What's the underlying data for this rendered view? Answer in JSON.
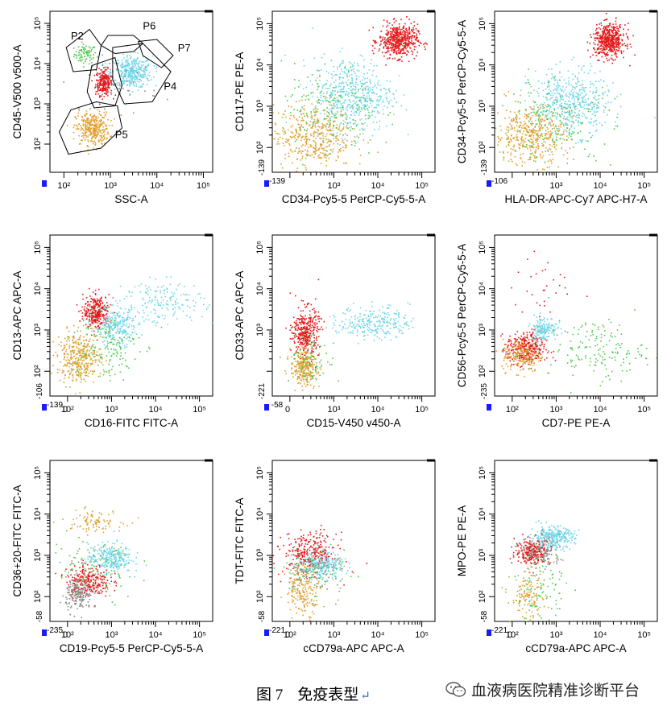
{
  "figure": {
    "caption_number": "图 7",
    "caption_text": "免疫表型",
    "watermark": "血液病医院精准诊断平台",
    "colors": {
      "red": "#e41a1c",
      "cyan": "#6fd6e8",
      "orange": "#e0a030",
      "green": "#4cc94c",
      "gray": "#8a8a8a",
      "purple": "#9b59b6",
      "blue_marker": "#1a1aff"
    }
  },
  "chart_data": [
    {
      "type": "scatter",
      "title": "",
      "xlabel": "SSC-A",
      "ylabel": "CD45-V500 v500-A",
      "x_ticks": [
        "10²",
        "10³",
        "10⁴",
        "10⁵"
      ],
      "y_ticks": [
        "10²",
        "10³",
        "10⁴",
        "10⁵"
      ],
      "x_start_label": "",
      "y_start_label": "",
      "xlim": [
        1.7,
        5.2
      ],
      "ylim": [
        1.3,
        5.3
      ],
      "grid": false,
      "gates": [
        {
          "name": "P2",
          "label": "P2",
          "polygon": [
            [
              2.05,
              4.4
            ],
            [
              2.55,
              4.85
            ],
            [
              2.8,
              4.45
            ],
            [
              2.7,
              3.85
            ],
            [
              2.2,
              3.8
            ]
          ]
        },
        {
          "name": "P6",
          "label": "P6",
          "polygon": [
            [
              2.8,
              4.45
            ],
            [
              2.95,
              4.7
            ],
            [
              3.5,
              4.7
            ],
            [
              3.7,
              4.5
            ],
            [
              3.5,
              4.3
            ],
            [
              3.1,
              4.25
            ]
          ]
        },
        {
          "name": "P7",
          "label": "P7",
          "polygon": [
            [
              3.6,
              4.55
            ],
            [
              4.0,
              4.6
            ],
            [
              4.35,
              4.2
            ],
            [
              4.1,
              3.9
            ],
            [
              3.7,
              4.2
            ]
          ]
        },
        {
          "name": "P4",
          "label": "P4",
          "polygon": [
            [
              3.05,
              4.4
            ],
            [
              3.7,
              4.5
            ],
            [
              4.3,
              3.8
            ],
            [
              3.9,
              3.05
            ],
            [
              3.3,
              3.0
            ],
            [
              3.05,
              3.6
            ]
          ]
        },
        {
          "name": "P3",
          "label": "",
          "polygon": [
            [
              2.6,
              3.95
            ],
            [
              3.1,
              4.15
            ],
            [
              3.25,
              3.45
            ],
            [
              3.1,
              2.95
            ],
            [
              2.65,
              2.9
            ],
            [
              2.5,
              3.3
            ]
          ]
        },
        {
          "name": "P5",
          "label": "P5",
          "polygon": [
            [
              1.9,
              2.3
            ],
            [
              2.15,
              2.85
            ],
            [
              2.7,
              3.05
            ],
            [
              3.15,
              2.95
            ],
            [
              3.25,
              2.4
            ],
            [
              2.8,
              1.9
            ],
            [
              2.1,
              1.75
            ]
          ]
        }
      ],
      "gate_label_positions": {
        "P2": [
          2.15,
          4.6
        ],
        "P6": [
          3.7,
          4.85
        ],
        "P7": [
          4.45,
          4.3
        ],
        "P4": [
          4.15,
          3.35
        ],
        "P5": [
          3.1,
          2.15
        ]
      },
      "populations": [
        {
          "color": "green",
          "n": 80,
          "cx": 2.45,
          "cy": 4.25,
          "sx": 0.12,
          "sy": 0.12
        },
        {
          "color": "red",
          "n": 260,
          "cx": 2.85,
          "cy": 3.55,
          "sx": 0.09,
          "sy": 0.16
        },
        {
          "color": "cyan",
          "n": 380,
          "cx": 3.45,
          "cy": 3.8,
          "sx": 0.22,
          "sy": 0.2
        },
        {
          "color": "orange",
          "n": 340,
          "cx": 2.6,
          "cy": 2.4,
          "sx": 0.18,
          "sy": 0.2
        },
        {
          "color": "gray",
          "n": 40,
          "cx": 3.3,
          "cy": 3.5,
          "sx": 0.35,
          "sy": 0.35
        }
      ]
    },
    {
      "type": "scatter",
      "title": "",
      "xlabel": "CD34-Pcy5-5 PerCP-Cy5-5-A",
      "ylabel": "CD117-PE PE-A",
      "x_ticks": [
        "10³",
        "10⁴",
        "10⁵"
      ],
      "y_ticks": [
        "10²",
        "10³",
        "10⁴",
        "10⁵"
      ],
      "x_start_label": "-139",
      "y_start_label": "-139",
      "xlim": [
        1.6,
        5.3
      ],
      "ylim": [
        1.4,
        5.3
      ],
      "grid": false,
      "gates": [],
      "populations": [
        {
          "color": "red",
          "n": 520,
          "cx": 4.45,
          "cy": 4.6,
          "sx": 0.22,
          "sy": 0.2
        },
        {
          "color": "cyan",
          "n": 520,
          "cx": 3.4,
          "cy": 3.3,
          "sx": 0.45,
          "sy": 0.45
        },
        {
          "color": "orange",
          "n": 420,
          "cx": 2.5,
          "cy": 2.3,
          "sx": 0.45,
          "sy": 0.4
        },
        {
          "color": "green",
          "n": 180,
          "cx": 2.9,
          "cy": 2.9,
          "sx": 0.55,
          "sy": 0.55
        }
      ]
    },
    {
      "type": "scatter",
      "title": "",
      "xlabel": "HLA-DR-APC-Cy7 APC-H7-A",
      "ylabel": "CD34-Pcy5-5 PerCP-Cy5-5-A",
      "x_ticks": [
        "10³",
        "10⁴",
        "10⁵"
      ],
      "y_ticks": [
        "10²",
        "10³",
        "10⁴",
        "10⁵"
      ],
      "x_start_label": "-106",
      "y_start_label": "-139",
      "xlim": [
        1.6,
        5.3
      ],
      "ylim": [
        1.4,
        5.3
      ],
      "grid": false,
      "gates": [],
      "populations": [
        {
          "color": "red",
          "n": 520,
          "cx": 4.2,
          "cy": 4.6,
          "sx": 0.18,
          "sy": 0.2
        },
        {
          "color": "cyan",
          "n": 480,
          "cx": 3.3,
          "cy": 3.1,
          "sx": 0.45,
          "sy": 0.4
        },
        {
          "color": "orange",
          "n": 420,
          "cx": 2.4,
          "cy": 2.3,
          "sx": 0.4,
          "sy": 0.35
        },
        {
          "color": "green",
          "n": 180,
          "cx": 3.0,
          "cy": 2.6,
          "sx": 0.65,
          "sy": 0.5
        }
      ]
    },
    {
      "type": "scatter",
      "title": "",
      "xlabel": "CD16-FITC FITC-A",
      "ylabel": "CD13-APC APC-A",
      "x_ticks": [
        "0",
        "10²",
        "10³",
        "10⁴",
        "10⁵"
      ],
      "y_ticks": [
        "10²",
        "10³",
        "10⁴",
        "10⁵"
      ],
      "x_start_label": "-139",
      "y_start_label": "-106",
      "xlim": [
        1.6,
        5.3
      ],
      "ylim": [
        1.4,
        5.3
      ],
      "grid": false,
      "gates": [],
      "populations": [
        {
          "color": "red",
          "n": 300,
          "cx": 2.65,
          "cy": 3.45,
          "sx": 0.15,
          "sy": 0.2
        },
        {
          "color": "cyan",
          "n": 260,
          "cx": 3.1,
          "cy": 3.1,
          "sx": 0.25,
          "sy": 0.25
        },
        {
          "color": "cyan",
          "n": 160,
          "cx": 4.2,
          "cy": 3.7,
          "sx": 0.45,
          "sy": 0.25
        },
        {
          "color": "orange",
          "n": 360,
          "cx": 2.25,
          "cy": 2.35,
          "sx": 0.25,
          "sy": 0.3
        },
        {
          "color": "green",
          "n": 140,
          "cx": 2.8,
          "cy": 2.6,
          "sx": 0.4,
          "sy": 0.4
        }
      ]
    },
    {
      "type": "scatter",
      "title": "",
      "xlabel": "CD15-V450 v450-A",
      "ylabel": "CD33-APC APC-A",
      "x_ticks": [
        "0",
        "10³",
        "10⁴",
        "10⁵"
      ],
      "y_ticks": [
        "10³",
        "10⁴",
        "10⁵"
      ],
      "x_start_label": "-58",
      "y_start_label": "-221",
      "xlim": [
        1.6,
        5.3
      ],
      "ylim": [
        1.4,
        5.3
      ],
      "grid": false,
      "gates": [],
      "populations": [
        {
          "color": "red",
          "n": 360,
          "cx": 2.35,
          "cy": 2.95,
          "sx": 0.15,
          "sy": 0.3
        },
        {
          "color": "orange",
          "n": 260,
          "cx": 2.3,
          "cy": 2.1,
          "sx": 0.15,
          "sy": 0.2
        },
        {
          "color": "cyan",
          "n": 260,
          "cx": 3.9,
          "cy": 3.2,
          "sx": 0.4,
          "sy": 0.2
        },
        {
          "color": "green",
          "n": 80,
          "cx": 2.5,
          "cy": 2.3,
          "sx": 0.25,
          "sy": 0.3
        }
      ]
    },
    {
      "type": "scatter",
      "title": "",
      "xlabel": "CD7-PE PE-A",
      "ylabel": "CD56-Pcy5-5 PerCP-Cy5-5-A",
      "x_ticks": [
        "10²",
        "10³",
        "10⁴",
        "10⁵"
      ],
      "y_ticks": [
        "10²",
        "10³",
        "10⁴",
        "10⁵"
      ],
      "x_start_label": "",
      "y_start_label": "-235",
      "xlim": [
        1.6,
        5.3
      ],
      "ylim": [
        1.4,
        5.3
      ],
      "grid": false,
      "gates": [],
      "populations": [
        {
          "color": "red",
          "n": 340,
          "cx": 2.3,
          "cy": 2.55,
          "sx": 0.22,
          "sy": 0.2
        },
        {
          "color": "orange",
          "n": 180,
          "cx": 2.2,
          "cy": 2.4,
          "sx": 0.22,
          "sy": 0.2
        },
        {
          "color": "cyan",
          "n": 160,
          "cx": 2.7,
          "cy": 3.05,
          "sx": 0.15,
          "sy": 0.15
        },
        {
          "color": "green",
          "n": 160,
          "cx": 3.9,
          "cy": 2.55,
          "sx": 0.55,
          "sy": 0.35
        },
        {
          "color": "red",
          "n": 30,
          "cx": 2.7,
          "cy": 4.0,
          "sx": 0.35,
          "sy": 0.4
        }
      ]
    },
    {
      "type": "scatter",
      "title": "",
      "xlabel": "CD19-Pcy5-5 PerCP-Cy5-5-A",
      "ylabel": "CD36+20-FITC FITC-A",
      "x_ticks": [
        "0",
        "10²",
        "10³",
        "10⁴",
        "10⁵"
      ],
      "y_ticks": [
        "10²",
        "10³",
        "10⁴",
        "10⁵"
      ],
      "x_start_label": "-235",
      "y_start_label": "-58",
      "xlim": [
        1.6,
        5.3
      ],
      "ylim": [
        1.4,
        5.3
      ],
      "grid": false,
      "gates": [],
      "populations": [
        {
          "color": "cyan",
          "n": 280,
          "cx": 2.95,
          "cy": 2.95,
          "sx": 0.25,
          "sy": 0.18
        },
        {
          "color": "red",
          "n": 260,
          "cx": 2.45,
          "cy": 2.4,
          "sx": 0.25,
          "sy": 0.2
        },
        {
          "color": "gray",
          "n": 160,
          "cx": 2.25,
          "cy": 2.05,
          "sx": 0.15,
          "sy": 0.2
        },
        {
          "color": "green",
          "n": 100,
          "cx": 2.6,
          "cy": 2.7,
          "sx": 0.5,
          "sy": 0.45
        },
        {
          "color": "orange",
          "n": 90,
          "cx": 2.55,
          "cy": 3.85,
          "sx": 0.35,
          "sy": 0.12
        }
      ]
    },
    {
      "type": "scatter",
      "title": "",
      "xlabel": "cCD79a-APC APC-A",
      "ylabel": "TDT-FITC FITC-A",
      "x_ticks": [
        "0",
        "10²",
        "10³",
        "10⁴",
        "10⁵"
      ],
      "y_ticks": [
        "10²",
        "10³",
        "10⁴",
        "10⁵"
      ],
      "x_start_label": "-221",
      "y_start_label": "-58",
      "xlim": [
        1.6,
        5.3
      ],
      "ylim": [
        1.4,
        5.3
      ],
      "grid": false,
      "gates": [],
      "populations": [
        {
          "color": "red",
          "n": 300,
          "cx": 2.45,
          "cy": 3.05,
          "sx": 0.3,
          "sy": 0.25
        },
        {
          "color": "cyan",
          "n": 260,
          "cx": 2.7,
          "cy": 2.75,
          "sx": 0.25,
          "sy": 0.15
        },
        {
          "color": "orange",
          "n": 200,
          "cx": 2.3,
          "cy": 2.2,
          "sx": 0.2,
          "sy": 0.3
        },
        {
          "color": "gray",
          "n": 80,
          "cx": 2.5,
          "cy": 2.7,
          "sx": 0.3,
          "sy": 0.3
        },
        {
          "color": "green",
          "n": 60,
          "cx": 2.6,
          "cy": 2.6,
          "sx": 0.4,
          "sy": 0.35
        }
      ]
    },
    {
      "type": "scatter",
      "title": "",
      "xlabel": "cCD79a-APC APC-A",
      "ylabel": "MPO-PE PE-A",
      "x_ticks": [
        "0",
        "10²",
        "10³",
        "10⁴",
        "10⁵"
      ],
      "y_ticks": [
        "10²",
        "10³",
        "10⁴",
        "10⁵"
      ],
      "x_start_label": "-221",
      "y_start_label": "-58",
      "xlim": [
        1.6,
        5.3
      ],
      "ylim": [
        1.4,
        5.3
      ],
      "grid": false,
      "gates": [],
      "populations": [
        {
          "color": "cyan",
          "n": 300,
          "cx": 2.9,
          "cy": 3.45,
          "sx": 0.25,
          "sy": 0.13
        },
        {
          "color": "red",
          "n": 240,
          "cx": 2.45,
          "cy": 3.1,
          "sx": 0.2,
          "sy": 0.15
        },
        {
          "color": "gray",
          "n": 120,
          "cx": 2.7,
          "cy": 3.1,
          "sx": 0.2,
          "sy": 0.2
        },
        {
          "color": "green",
          "n": 100,
          "cx": 2.6,
          "cy": 2.2,
          "sx": 0.3,
          "sy": 0.4
        },
        {
          "color": "orange",
          "n": 120,
          "cx": 2.35,
          "cy": 2.0,
          "sx": 0.2,
          "sy": 0.3
        }
      ]
    }
  ]
}
